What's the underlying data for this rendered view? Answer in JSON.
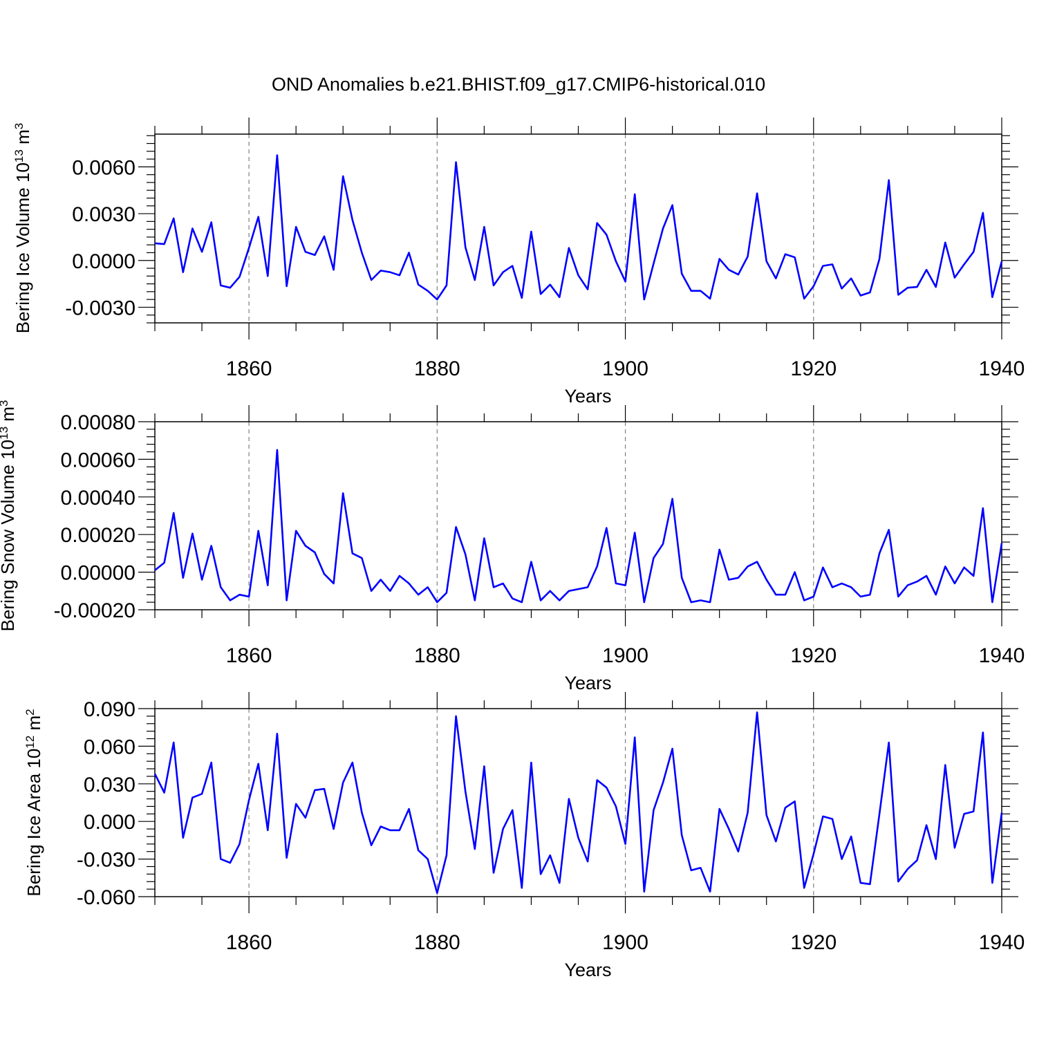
{
  "title": "OND Anomalies b.e21.BHIST.f09_g17.CMIP6-historical.010",
  "colors": {
    "line": "#0000ff",
    "frame": "#000000",
    "grid": "#808080"
  },
  "chart_data": [
    {
      "type": "line",
      "title": "OND Anomalies b.e21.BHIST.f09_g17.CMIP6-historical.010",
      "xlabel": "Years",
      "ylabel": {
        "base": "Bering Ice Volume 10",
        "exp": "13",
        "unit": " m",
        "unit_exp": "3"
      },
      "xlim": [
        1850,
        1940
      ],
      "ylim": [
        -0.004,
        0.0081
      ],
      "x_ticks": [
        1860,
        1880,
        1900,
        1920,
        1940
      ],
      "y_ticks": [
        -0.003,
        0.0,
        0.003,
        0.006
      ],
      "y_tick_labels": [
        "-0.0030",
        "0.0000",
        "0.0030",
        "0.0060"
      ],
      "y_minor_step": 0.0005,
      "x_start": 1850,
      "series": [
        {
          "name": "Bering Ice Volume",
          "values": [
            0.0011,
            0.00105,
            0.0027,
            -0.00075,
            0.00205,
            0.00055,
            0.00245,
            -0.0016,
            -0.00175,
            -0.00105,
            0.0008,
            0.0028,
            -0.001,
            0.00675,
            -0.00165,
            0.00215,
            0.00055,
            0.00035,
            0.00155,
            -0.0006,
            0.0054,
            0.0026,
            0.0005,
            -0.00125,
            -0.00065,
            -0.00075,
            -0.00095,
            0.0005,
            -0.00155,
            -0.00195,
            -0.0025,
            -0.0016,
            0.0063,
            0.00085,
            -0.00125,
            0.00215,
            -0.0016,
            -0.00075,
            -0.00035,
            -0.0024,
            0.00185,
            -0.00215,
            -0.00155,
            -0.00235,
            0.0008,
            -0.00095,
            -0.00185,
            0.0024,
            0.00165,
            -5e-05,
            -0.00135,
            0.00425,
            -0.0025,
            -0.0002,
            0.00205,
            0.00355,
            -0.00085,
            -0.00195,
            -0.00195,
            -0.00245,
            0.0001,
            -0.0006,
            -0.0009,
            0.00025,
            0.0043,
            -5e-05,
            -0.00115,
            0.0004,
            0.0002,
            -0.00245,
            -0.00165,
            -0.00035,
            -0.00025,
            -0.0018,
            -0.00115,
            -0.00225,
            -0.00205,
            0.0001,
            0.00515,
            -0.0022,
            -0.00175,
            -0.0017,
            -0.0006,
            -0.0017,
            0.00115,
            -0.0011,
            -0.00025,
            0.00055,
            0.00305,
            -0.00235,
            -5e-05
          ]
        }
      ]
    },
    {
      "type": "line",
      "xlabel": "Years",
      "ylabel": {
        "base": "Bering Snow Volume 10",
        "exp": "13",
        "unit": " m",
        "unit_exp": "3"
      },
      "xlim": [
        1850,
        1940
      ],
      "ylim": [
        -0.0002,
        0.0008
      ],
      "x_ticks": [
        1860,
        1880,
        1900,
        1920,
        1940
      ],
      "y_ticks": [
        -0.0002,
        0.0,
        0.0002,
        0.0004,
        0.0006,
        0.0008
      ],
      "y_tick_labels": [
        "-0.00020",
        "0.00000",
        "0.00020",
        "0.00040",
        "0.00060",
        "0.00080"
      ],
      "y_minor_step": 4e-05,
      "x_start": 1850,
      "series": [
        {
          "name": "Bering Snow Volume",
          "values": [
            1e-05,
            5e-05,
            0.000315,
            -3e-05,
            0.000205,
            -4e-05,
            0.00014,
            -8e-05,
            -0.00015,
            -0.00012,
            -0.00013,
            0.00022,
            -7e-05,
            0.00065,
            -0.00015,
            0.00022,
            0.00014,
            0.000105,
            -1e-05,
            -6e-05,
            0.00042,
            0.0001,
            7.5e-05,
            -0.0001,
            -4e-05,
            -0.0001,
            -2e-05,
            -6e-05,
            -0.00012,
            -8e-05,
            -0.00016,
            -0.00011,
            0.00024,
            9.5e-05,
            -0.00015,
            0.00018,
            -8e-05,
            -6e-05,
            -0.00014,
            -0.00016,
            5.5e-05,
            -0.00015,
            -0.0001,
            -0.00015,
            -0.0001,
            -9e-05,
            -8e-05,
            3e-05,
            0.000235,
            -6e-05,
            -7e-05,
            0.00021,
            -0.00016,
            7.5e-05,
            0.00015,
            0.00039,
            -3e-05,
            -0.00016,
            -0.00015,
            -0.00016,
            0.00012,
            -4e-05,
            -3e-05,
            3e-05,
            5.5e-05,
            -4e-05,
            -0.00012,
            -0.00012,
            0.0,
            -0.00015,
            -0.00013,
            2.5e-05,
            -8e-05,
            -6e-05,
            -8e-05,
            -0.00013,
            -0.00012,
            0.0001,
            0.000225,
            -0.00013,
            -7e-05,
            -5e-05,
            -2e-05,
            -0.00012,
            3e-05,
            -6e-05,
            2.5e-05,
            -2e-05,
            0.00034,
            -0.00016,
            0.000155
          ]
        }
      ]
    },
    {
      "type": "line",
      "xlabel": "Years",
      "ylabel": {
        "base": "Bering Ice Area 10",
        "exp": "12",
        "unit": " m",
        "unit_exp": "2"
      },
      "xlim": [
        1850,
        1940
      ],
      "ylim": [
        -0.06,
        0.09
      ],
      "x_ticks": [
        1860,
        1880,
        1900,
        1920,
        1940
      ],
      "y_ticks": [
        -0.06,
        -0.03,
        0.0,
        0.03,
        0.06,
        0.09
      ],
      "y_tick_labels": [
        "-0.060",
        "-0.030",
        "0.000",
        "0.030",
        "0.060",
        "0.090"
      ],
      "y_minor_step": 0.006,
      "x_start": 1850,
      "series": [
        {
          "name": "Bering Ice Area",
          "values": [
            0.038,
            0.023,
            0.063,
            -0.013,
            0.019,
            0.022,
            0.047,
            -0.03,
            -0.033,
            -0.018,
            0.017,
            0.046,
            -0.007,
            0.07,
            -0.029,
            0.014,
            0.003,
            0.025,
            0.026,
            -0.006,
            0.031,
            0.047,
            0.007,
            -0.019,
            -0.004,
            -0.007,
            -0.007,
            0.01,
            -0.023,
            -0.03,
            -0.057,
            -0.027,
            0.084,
            0.024,
            -0.022,
            0.044,
            -0.041,
            -0.006,
            0.009,
            -0.053,
            0.047,
            -0.042,
            -0.027,
            -0.049,
            0.018,
            -0.013,
            -0.032,
            0.033,
            0.027,
            0.012,
            -0.018,
            0.067,
            -0.056,
            0.009,
            0.031,
            0.058,
            -0.011,
            -0.039,
            -0.037,
            -0.056,
            0.01,
            -0.006,
            -0.024,
            0.007,
            0.087,
            0.005,
            -0.016,
            0.011,
            0.016,
            -0.053,
            -0.026,
            0.004,
            0.002,
            -0.03,
            -0.012,
            -0.049,
            -0.05,
            0.006,
            0.063,
            -0.048,
            -0.038,
            -0.031,
            -0.003,
            -0.03,
            0.045,
            -0.021,
            0.006,
            0.008,
            0.071,
            -0.049,
            0.007
          ]
        }
      ]
    }
  ],
  "x_tick_labels": [
    "1860",
    "1880",
    "1900",
    "1920",
    "1940"
  ]
}
